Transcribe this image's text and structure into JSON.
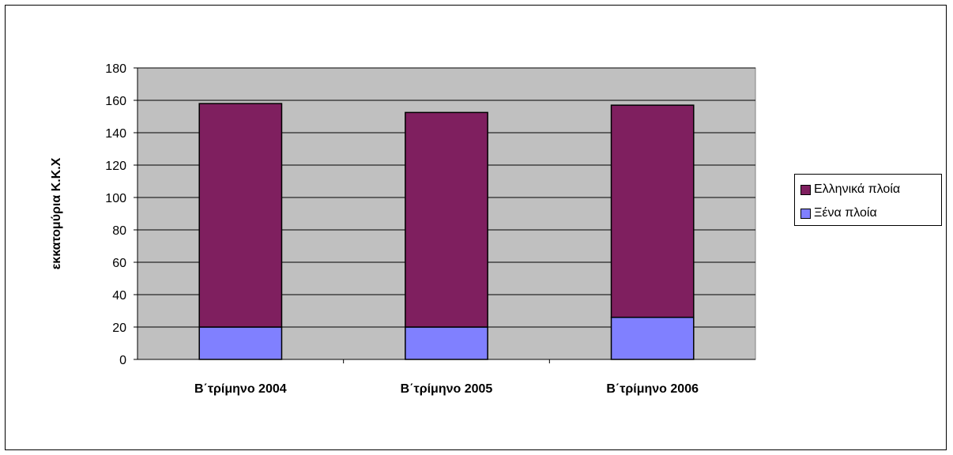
{
  "chart_data": {
    "type": "bar",
    "stacked": true,
    "categories": [
      "Β΄τρίμηνο 2004",
      "Β΄τρίμηνο 2005",
      "Β΄τρίμηνο 2006"
    ],
    "series": [
      {
        "name": "Ξένα πλοία",
        "values": [
          20,
          20,
          26
        ],
        "color": "#8080ff"
      },
      {
        "name": "Ελληνικά πλοία",
        "values": [
          138,
          132.5,
          131
        ],
        "color": "#7f1f5f"
      }
    ],
    "ylabel": "εκκατομύρια Κ.Κ.Χ",
    "ylim": [
      0,
      180
    ],
    "yticks": [
      0,
      20,
      40,
      60,
      80,
      100,
      120,
      140,
      160,
      180
    ],
    "grid": true,
    "plot_background": "#c0c0c0",
    "legend": {
      "position": "right",
      "items": [
        {
          "label": "Ελληνικά πλοία",
          "color": "#7f1f5f"
        },
        {
          "label": "Ξένα πλοία",
          "color": "#8080ff"
        }
      ]
    }
  }
}
